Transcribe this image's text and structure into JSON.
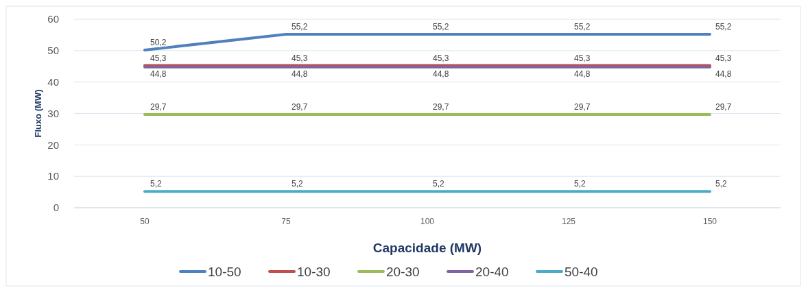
{
  "chart_data": {
    "type": "line",
    "xlabel": "Capacidade (MW)",
    "ylabel": "Fluxo (MW)",
    "categories": [
      "50",
      "75",
      "100",
      "125",
      "150"
    ],
    "ylim": [
      0,
      60
    ],
    "yticks": [
      0,
      10,
      20,
      30,
      40,
      50,
      60
    ],
    "grid": "y",
    "legend": "bottom",
    "marker": "none",
    "line_style": "solid",
    "series": [
      {
        "name": "10-50",
        "color": "#4f81bd",
        "values": [
          50.2,
          55.2,
          55.2,
          55.2,
          55.2
        ],
        "value_labels": [
          "50,2",
          "55,2",
          "55,2",
          "55,2",
          "55,2"
        ]
      },
      {
        "name": "10-30",
        "color": "#c0504d",
        "values": [
          45.3,
          45.3,
          45.3,
          45.3,
          45.3
        ],
        "value_labels": [
          "45,3",
          "45,3",
          "45,3",
          "45,3",
          "45,3"
        ]
      },
      {
        "name": "20-30",
        "color": "#9bbb59",
        "values": [
          29.7,
          29.7,
          29.7,
          29.7,
          29.7
        ],
        "value_labels": [
          "29,7",
          "29,7",
          "29,7",
          "29,7",
          "29,7"
        ]
      },
      {
        "name": "20-40",
        "color": "#8064a2",
        "values": [
          44.8,
          44.8,
          44.8,
          44.8,
          44.8
        ],
        "value_labels": [
          "44,8",
          "44,8",
          "44,8",
          "44,8",
          "44,8"
        ]
      },
      {
        "name": "50-40",
        "color": "#4bacc6",
        "values": [
          5.2,
          5.2,
          5.2,
          5.2,
          5.2
        ],
        "value_labels": [
          "5,2",
          "5,2",
          "5,2",
          "5,2",
          "5,2"
        ]
      }
    ]
  }
}
